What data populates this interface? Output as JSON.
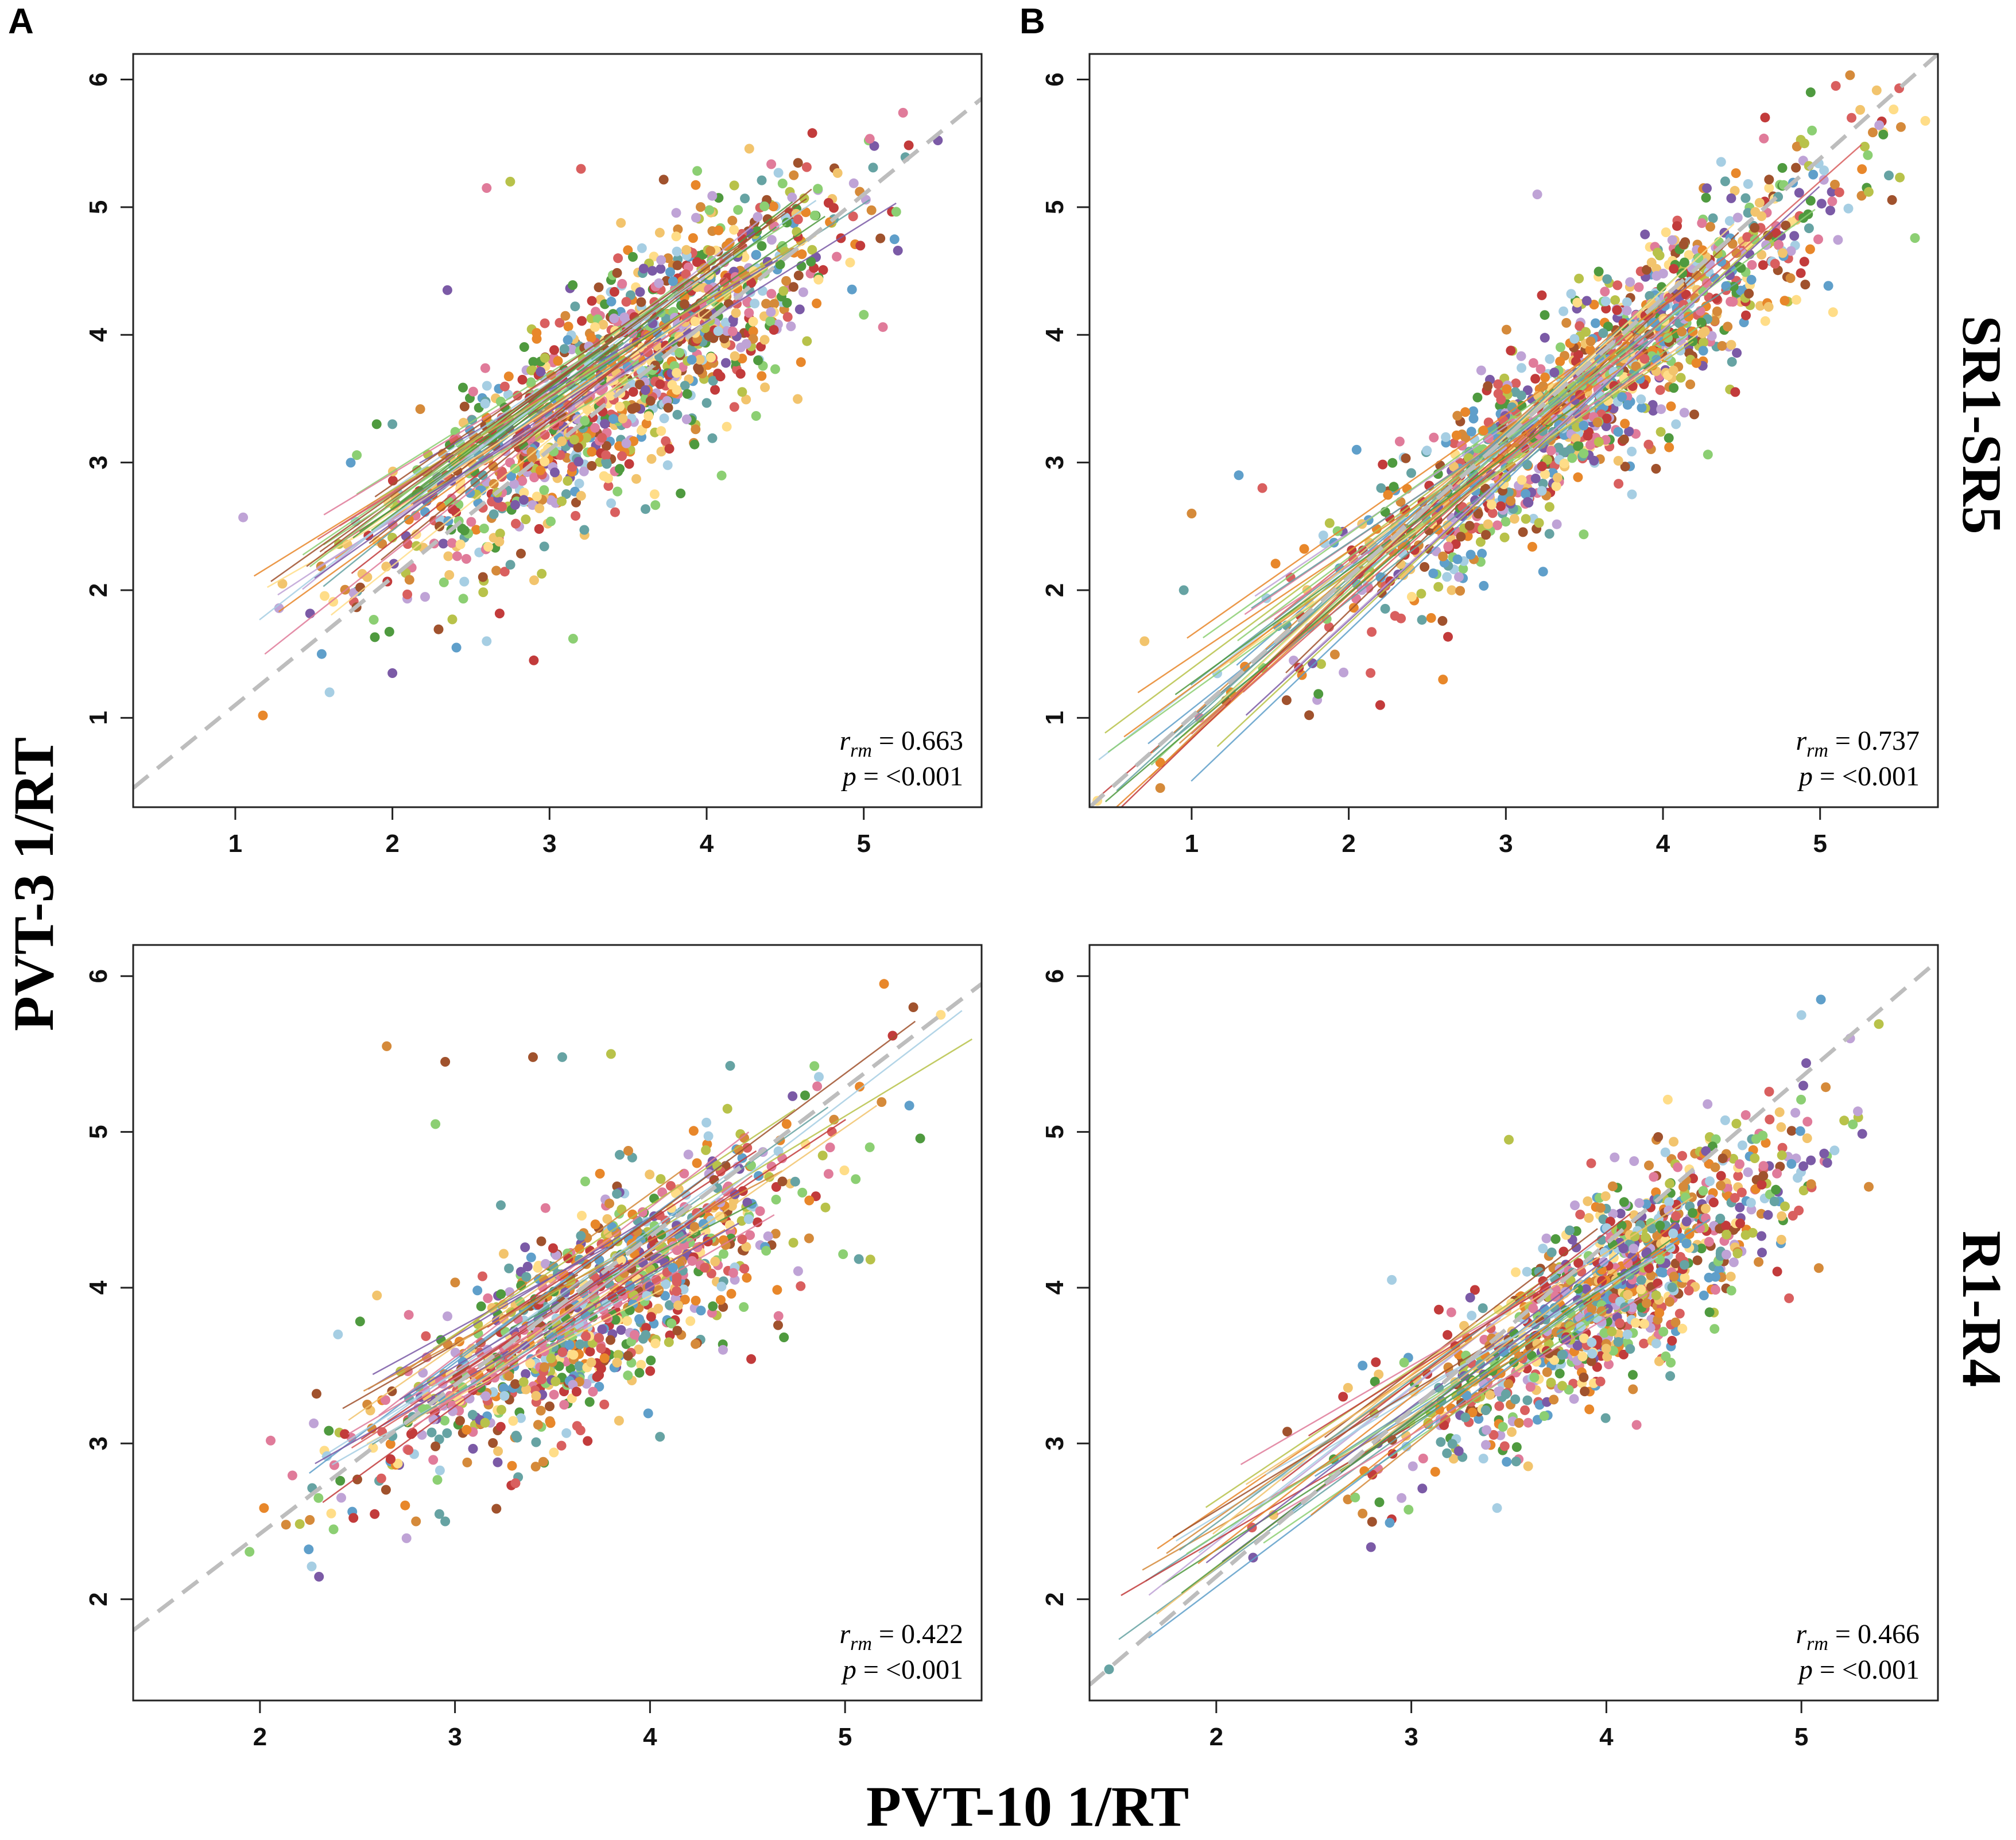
{
  "figure": {
    "ylabel": "PVT-3 1/RT",
    "xlabel": "PVT-10 1/RT",
    "rows": [
      {
        "label": "SR1-SR5"
      },
      {
        "label": "R1-R4"
      }
    ],
    "colors": {
      "reference_line": "#bdbdbd",
      "palette": [
        "#7b5aa6",
        "#e8872a",
        "#f2c46d",
        "#8ccf73",
        "#4f9a3f",
        "#5f9fca",
        "#a6cee3",
        "#d95f5f",
        "#c23b3b",
        "#a0522d",
        "#bfa3d6",
        "#ffdd88",
        "#66a3a3",
        "#d58a3a",
        "#b8c24a",
        "#e07b9a"
      ]
    }
  },
  "chart_data": [
    {
      "type": "scatter",
      "panel": "A",
      "row": "SR1-SR5",
      "xlim": [
        0.35,
        5.75
      ],
      "ylim": [
        0.3,
        6.2
      ],
      "xticks": [
        1,
        2,
        3,
        4,
        5
      ],
      "yticks": [
        1,
        2,
        3,
        4,
        5,
        6
      ],
      "stat_r_symbol": "r",
      "stat_r_sub": "rm",
      "stat_r_value": "= 0.663",
      "stat_p_symbol": "p",
      "stat_p_value": "= <0.001",
      "cloud": {
        "x_mean": 3.45,
        "x_sd": 0.72,
        "slope": 0.9,
        "intercept": 0.55,
        "residual_sd": 0.42,
        "n": 1300,
        "seed": 11
      },
      "points": [
        [
          1.05,
          2.57
        ],
        [
          1.3,
          2.05
        ],
        [
          2.0,
          3.3
        ],
        [
          1.6,
          1.2
        ],
        [
          1.55,
          1.5
        ],
        [
          2.0,
          1.35
        ],
        [
          2.6,
          5.15
        ],
        [
          2.9,
          1.45
        ],
        [
          3.15,
          1.62
        ],
        [
          2.75,
          5.2
        ],
        [
          3.2,
          5.3
        ],
        [
          2.35,
          4.35
        ],
        [
          1.9,
          3.3
        ],
        [
          2.6,
          1.6
        ]
      ],
      "reference_line": {
        "x": [
          0.35,
          5.75
        ],
        "y": [
          0.45,
          5.85
        ]
      },
      "regression": {
        "n": 40,
        "x_start": 1.05,
        "slope": 0.85,
        "intercept": 0.9,
        "length": 2.6,
        "seed": 21
      }
    },
    {
      "type": "scatter",
      "panel": "B",
      "row": "SR1-SR5",
      "xlim": [
        0.35,
        5.75
      ],
      "ylim": [
        0.3,
        6.2
      ],
      "xticks": [
        1,
        2,
        3,
        4,
        5
      ],
      "yticks": [
        1,
        2,
        3,
        4,
        5,
        6
      ],
      "stat_r_symbol": "r",
      "stat_r_sub": "rm",
      "stat_r_value": "= 0.737",
      "stat_p_symbol": "p",
      "stat_p_value": "= <0.001",
      "cloud": {
        "x_mean": 3.5,
        "x_sd": 0.78,
        "slope": 1.0,
        "intercept": 0.05,
        "residual_sd": 0.36,
        "n": 1300,
        "seed": 33
      },
      "points": [
        [
          0.4,
          0.35
        ],
        [
          0.8,
          0.45
        ],
        [
          0.8,
          0.65
        ],
        [
          0.95,
          2.0
        ],
        [
          1.0,
          2.6
        ],
        [
          1.3,
          2.9
        ],
        [
          1.45,
          2.8
        ],
        [
          0.7,
          1.6
        ],
        [
          1.05,
          1.0
        ],
        [
          2.05,
          3.1
        ],
        [
          2.2,
          1.1
        ],
        [
          2.6,
          1.3
        ],
        [
          3.2,
          5.1
        ],
        [
          5.1,
          5.95
        ],
        [
          5.2,
          5.7
        ],
        [
          4.9,
          5.5
        ],
        [
          1.25,
          1.2
        ]
      ],
      "reference_line": {
        "x": [
          0.35,
          5.75
        ],
        "y": [
          0.3,
          6.2
        ]
      },
      "regression": {
        "n": 40,
        "x_start": 0.4,
        "slope": 1.0,
        "intercept": 0.1,
        "length": 3.4,
        "seed": 44
      }
    },
    {
      "type": "scatter",
      "panel": "A",
      "row": "R1-R4",
      "xlim": [
        1.35,
        5.7
      ],
      "ylim": [
        1.35,
        6.2
      ],
      "xticks": [
        2,
        3,
        4,
        5
      ],
      "yticks": [
        2,
        3,
        4,
        5,
        6
      ],
      "stat_r_symbol": "r",
      "stat_r_sub": "rm",
      "stat_r_value": "= 0.422",
      "stat_p_symbol": "p",
      "stat_p_value": "= <0.001",
      "cloud": {
        "x_mean": 3.7,
        "x_sd": 0.55,
        "slope": 0.78,
        "intercept": 0.95,
        "residual_sd": 0.33,
        "n": 1000,
        "seed": 55
      },
      "points": [
        [
          2.25,
          2.32
        ],
        [
          2.3,
          2.65
        ],
        [
          2.9,
          5.05
        ],
        [
          2.95,
          5.45
        ],
        [
          3.4,
          5.48
        ],
        [
          3.55,
          5.48
        ],
        [
          2.65,
          5.55
        ],
        [
          3.8,
          5.5
        ],
        [
          2.8,
          2.5
        ],
        [
          2.95,
          2.5
        ],
        [
          5.2,
          5.95
        ],
        [
          5.35,
          5.8
        ],
        [
          2.6,
          3.95
        ],
        [
          2.4,
          3.7
        ],
        [
          2.55,
          3.25
        ]
      ],
      "reference_line": {
        "x": [
          1.35,
          5.7
        ],
        "y": [
          1.8,
          5.95
        ]
      },
      "regression": {
        "n": 35,
        "x_start": 2.25,
        "slope": 0.8,
        "intercept": 1.1,
        "length": 2.0,
        "seed": 66
      }
    },
    {
      "type": "scatter",
      "panel": "B",
      "row": "R1-R4",
      "xlim": [
        1.35,
        5.7
      ],
      "ylim": [
        1.35,
        6.2
      ],
      "xticks": [
        2,
        3,
        4,
        5
      ],
      "yticks": [
        2,
        3,
        4,
        5,
        6
      ],
      "stat_r_symbol": "r",
      "stat_r_sub": "rm",
      "stat_r_value": "= 0.466",
      "stat_p_symbol": "p",
      "stat_p_value": "= <0.001",
      "cloud": {
        "x_mean": 4.05,
        "x_sd": 0.5,
        "slope": 0.85,
        "intercept": 0.55,
        "residual_sd": 0.3,
        "n": 1000,
        "seed": 77
      },
      "points": [
        [
          1.45,
          1.55
        ],
        [
          2.75,
          2.55
        ],
        [
          2.8,
          2.8
        ],
        [
          2.95,
          2.65
        ],
        [
          2.65,
          3.3
        ],
        [
          2.75,
          3.5
        ],
        [
          3.5,
          4.95
        ],
        [
          5.0,
          5.75
        ],
        [
          5.1,
          5.85
        ],
        [
          5.25,
          5.6
        ],
        [
          2.9,
          4.05
        ],
        [
          4.9,
          4.85
        ]
      ],
      "reference_line": {
        "x": [
          1.35,
          5.7
        ],
        "y": [
          1.45,
          6.1
        ]
      },
      "regression": {
        "n": 35,
        "x_start": 1.5,
        "slope": 0.85,
        "intercept": 0.7,
        "length": 2.0,
        "seed": 88
      }
    }
  ]
}
